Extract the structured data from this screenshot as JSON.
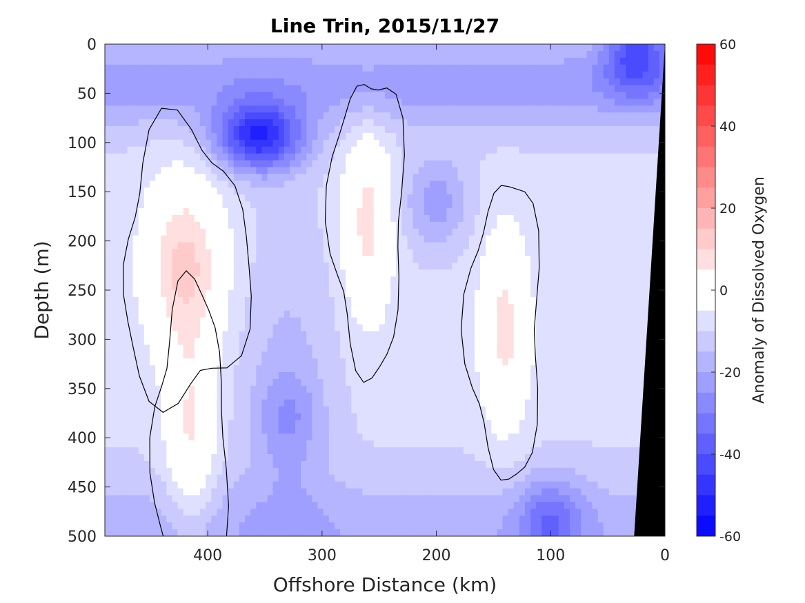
{
  "chart_data": {
    "type": "heatmap",
    "title": "Line Trin, 2015/11/27",
    "xlabel": "Offshore Distance (km)",
    "ylabel": "Depth (m)",
    "colorbar_label": "Anomaly of Dissolved Oxygen",
    "xlim": [
      490,
      0
    ],
    "ylim": [
      500,
      0
    ],
    "x_ticks": [
      400,
      300,
      200,
      100,
      0
    ],
    "y_ticks": [
      0,
      50,
      100,
      150,
      200,
      250,
      300,
      350,
      400,
      450,
      500
    ],
    "colorbar": {
      "range": [
        -60,
        60
      ],
      "levels_step": 5,
      "ticks": [
        60,
        40,
        20,
        0,
        -20,
        -40,
        -60
      ],
      "colormap": "blue-white-red",
      "negative_color": "#0000ff",
      "neutral_color": "#ffffff",
      "positive_color": "#ff0000"
    },
    "contour_levels_drawn": [
      0
    ],
    "contour_color": "#000000",
    "bathymetry_color": "#000000",
    "features": [
      {
        "type": "low",
        "x": 355,
        "depth": 95,
        "value": -55
      },
      {
        "type": "low",
        "x": 25,
        "depth": 5,
        "value": -40
      },
      {
        "type": "low",
        "x": 200,
        "depth": 160,
        "value": -25
      },
      {
        "type": "low",
        "x": 100,
        "depth": 485,
        "value": -30
      },
      {
        "type": "low",
        "x": 330,
        "depth": 380,
        "value": -20
      },
      {
        "type": "high",
        "x": 420,
        "depth": 225,
        "value": 15
      },
      {
        "type": "high",
        "x": 260,
        "depth": 180,
        "value": 10
      },
      {
        "type": "high",
        "x": 140,
        "depth": 290,
        "value": 10
      },
      {
        "type": "high",
        "x": 415,
        "depth": 400,
        "value": 8
      }
    ]
  }
}
